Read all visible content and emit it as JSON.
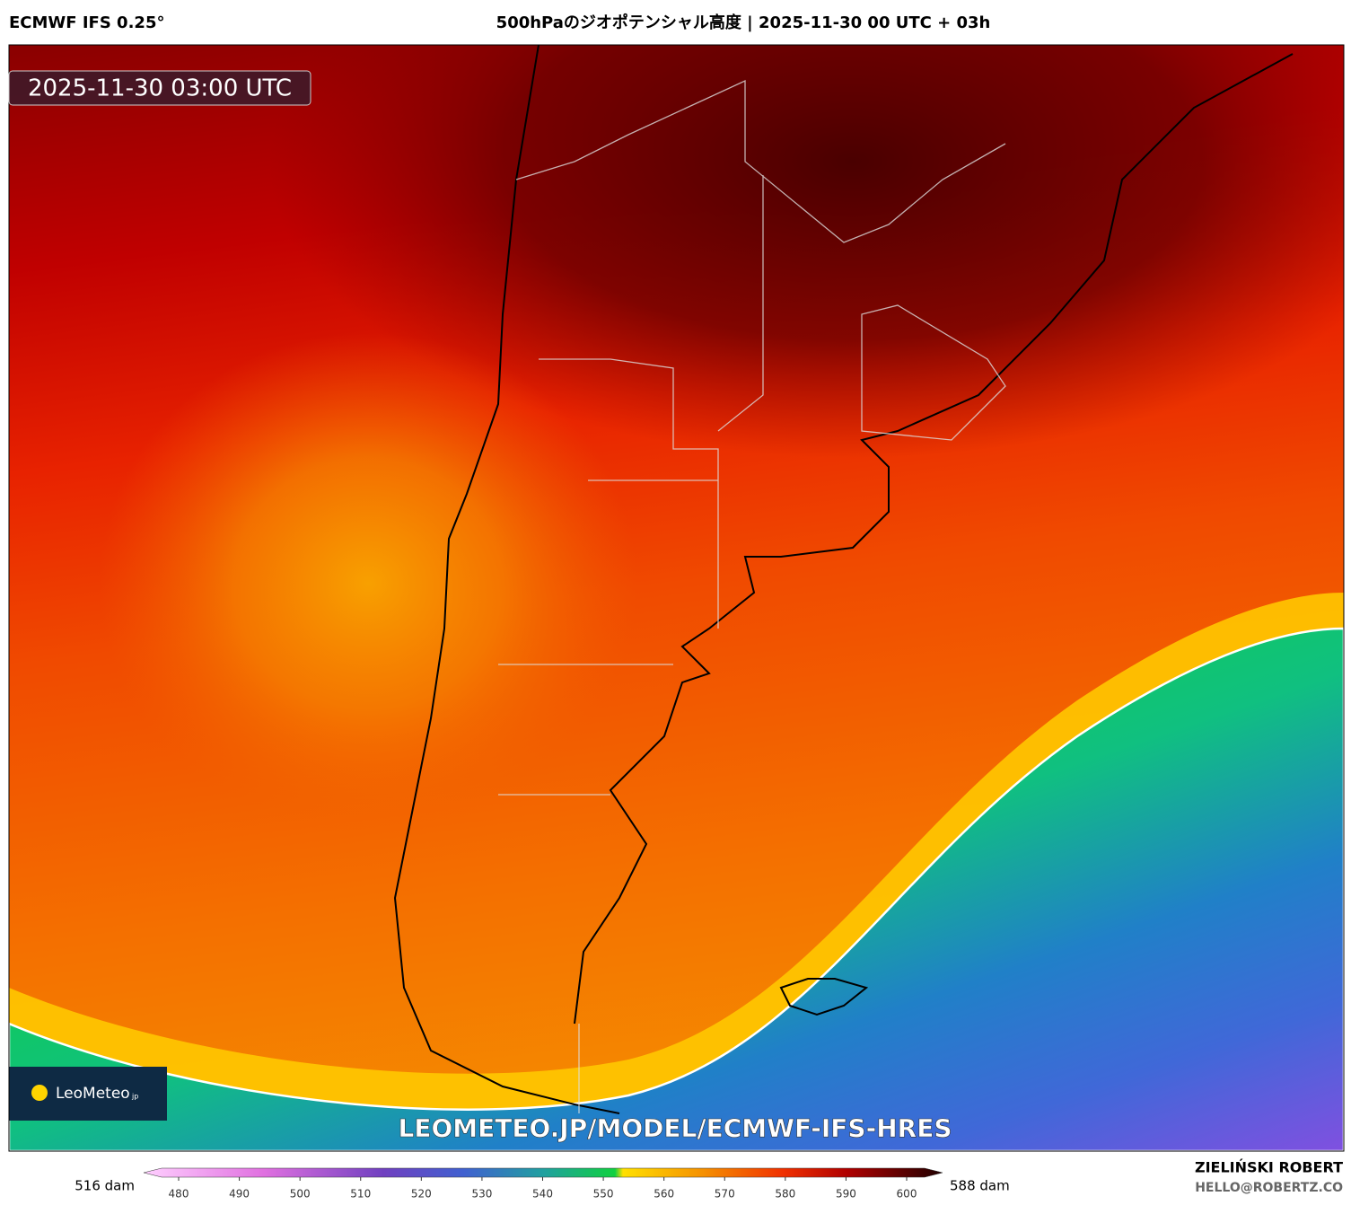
{
  "header": {
    "model": "ECMWF IFS 0.25°",
    "title": "500hPaのジオポテンシャル高度 | 2025-11-30 00 UTC + 03h"
  },
  "map": {
    "timestamp": "2025-11-30 03:00 UTC",
    "logo": {
      "name": "LeoMeteo",
      "suffix": "jp"
    },
    "watermark": "LEOMETEO.JP/MODEL/ECMWF-IFS-HRES"
  },
  "colorbar": {
    "min_label": "516 dam",
    "max_label": "588 dam",
    "ticks": [
      480,
      490,
      500,
      510,
      520,
      530,
      540,
      550,
      560,
      570,
      580,
      590,
      600
    ]
  },
  "footer": {
    "author": "ZIELIŃSKI ROBERT",
    "contact": "HELLO@ROBERTZ.CO"
  }
}
